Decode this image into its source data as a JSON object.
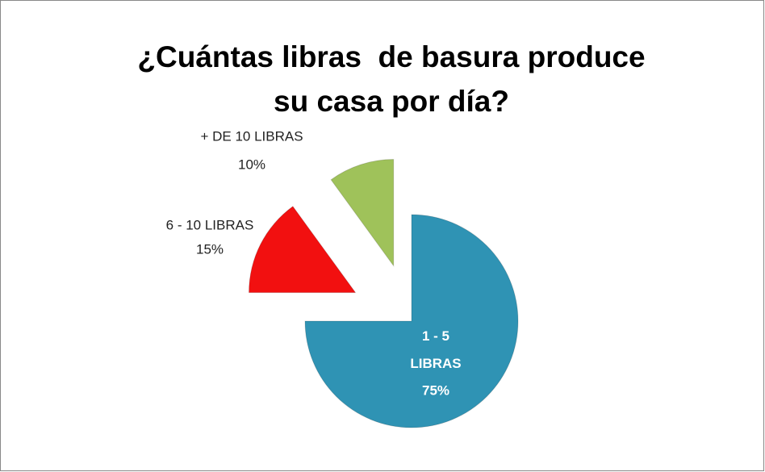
{
  "chart_data": {
    "type": "pie",
    "title": [
      "¿Cuántas libras  de basura produce",
      "su casa por día?"
    ],
    "categories": [
      "1 - 5 LIBRAS",
      "6 - 10 LIBRAS",
      "+ DE 10 LIBRAS"
    ],
    "values": [
      75,
      15,
      10
    ],
    "value_labels": [
      "75%",
      "15%",
      "10%"
    ],
    "colors": [
      "#2f93b4",
      "#f21010",
      "#9fc25a"
    ]
  }
}
